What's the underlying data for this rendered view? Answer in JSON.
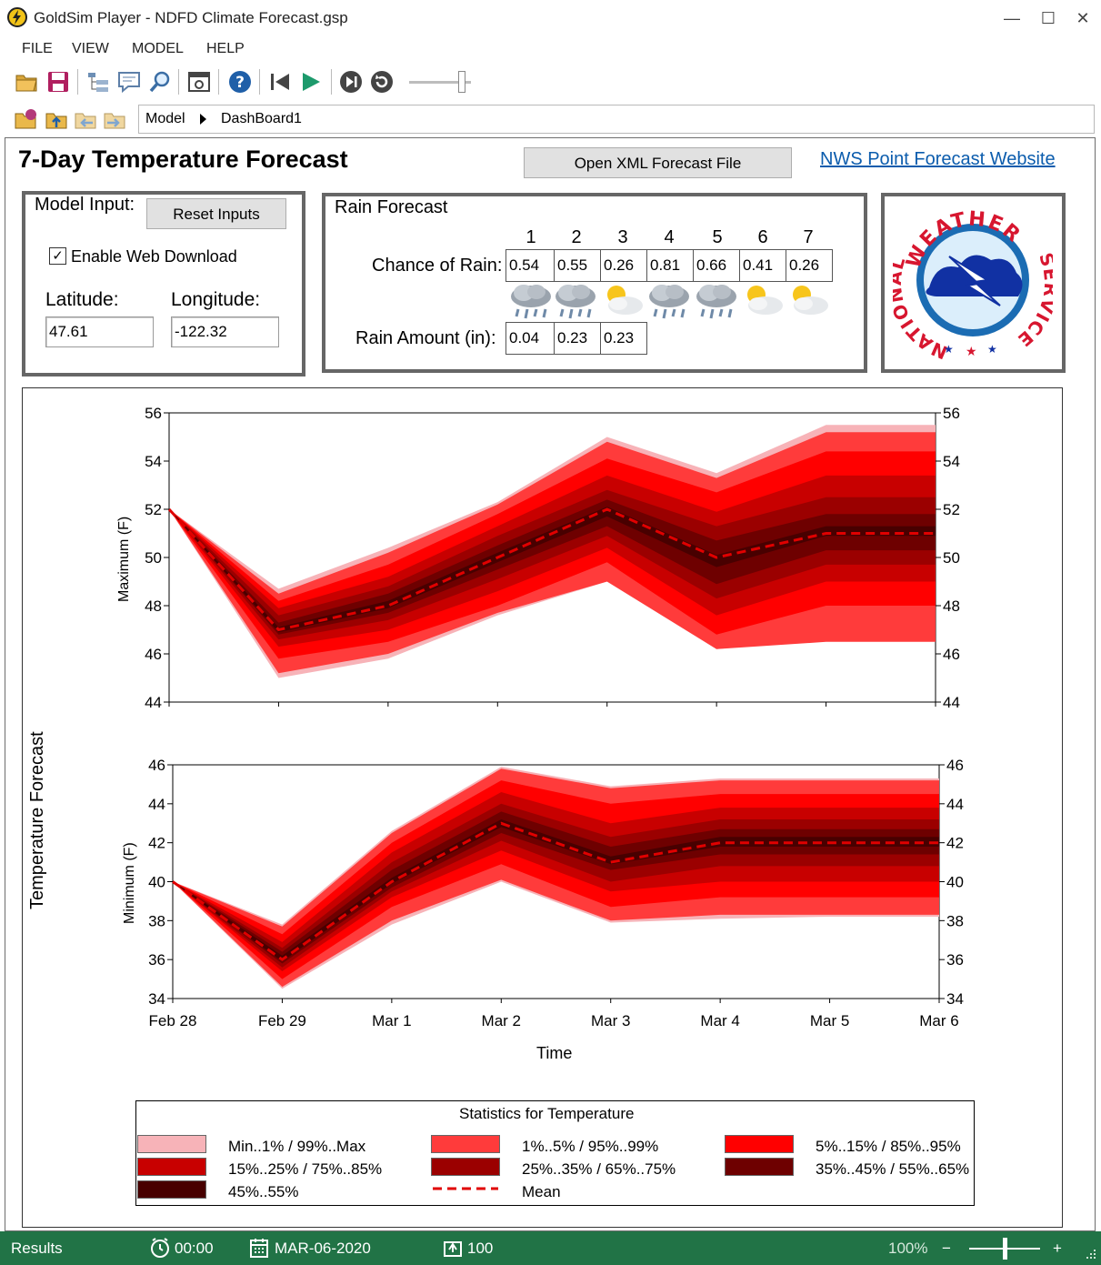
{
  "window": {
    "title": "GoldSim Player - NDFD Climate Forecast.gsp",
    "minimize": "—",
    "maximize": "☐",
    "close": "✕"
  },
  "menu": [
    "FILE",
    "VIEW",
    "MODEL",
    "HELP"
  ],
  "toolbar": {
    "icons": [
      "open-folder-icon",
      "save-icon",
      "browser-tree-icon",
      "comment-icon",
      "search-icon",
      "dashboard-icon",
      "help-icon",
      "step-back-icon",
      "run-icon",
      "step-forward-icon",
      "reset-icon",
      "time-slider"
    ]
  },
  "breadcrumb": {
    "root": "Model",
    "current": "DashBoard1"
  },
  "dashboard": {
    "title": "7-Day Temperature Forecast",
    "open_xml_label": "Open XML Forecast File",
    "nws_link": "NWS Point Forecast Website"
  },
  "model_input": {
    "title": "Model Input:",
    "reset_label": "Reset Inputs",
    "web_download_label": "Enable Web Download",
    "web_download_checked": "✓",
    "lat_label": "Latitude:",
    "lon_label": "Longitude:",
    "latitude": "47.61",
    "longitude": "-122.32"
  },
  "rain": {
    "title": "Rain Forecast",
    "days": [
      "1",
      "2",
      "3",
      "4",
      "5",
      "6",
      "7"
    ],
    "chance_label": "Chance of Rain:",
    "chance": [
      "0.54",
      "0.55",
      "0.26",
      "0.81",
      "0.66",
      "0.41",
      "0.26"
    ],
    "icons": [
      "rain-cloud-icon",
      "rain-cloud-icon",
      "partly-sunny-icon",
      "rain-cloud-icon",
      "rain-cloud-icon",
      "partly-sunny-icon",
      "partly-sunny-icon"
    ],
    "amount_label": "Rain Amount (in):",
    "amount": [
      "0.04",
      "0.23",
      "0.23"
    ]
  },
  "nws_logo": {
    "top_text": "WEATHER",
    "left_text": "NATIONAL",
    "right_text": "SERVICE"
  },
  "chart": {
    "y_title": "Temperature Forecast",
    "x_title": "Time",
    "dates": [
      "Feb 28",
      "Feb 29",
      "Mar 1",
      "Mar 2",
      "Mar 3",
      "Mar 4",
      "Mar 5",
      "Mar 6"
    ],
    "max_label": "Maximum (F)",
    "min_label": "Minimum (F)",
    "max_ticks": [
      "56",
      "54",
      "52",
      "50",
      "48",
      "46",
      "44"
    ],
    "min_ticks": [
      "46",
      "44",
      "42",
      "40",
      "38",
      "36",
      "34"
    ],
    "colors": [
      "#f7b3b8",
      "#ff3b3b",
      "#ff0000",
      "#c80000",
      "#9b0000",
      "#6e0000",
      "#480000"
    ]
  },
  "chart_data": [
    {
      "type": "area",
      "ylabel": "Maximum (F)",
      "xlabel": "Time",
      "x": [
        "Feb 28",
        "Feb 29",
        "Mar 1",
        "Mar 2",
        "Mar 3",
        "Mar 4",
        "Mar 5",
        "Mar 6"
      ],
      "ylim": [
        44,
        56
      ],
      "series": [
        {
          "name": "Mean",
          "values": [
            52,
            47,
            48,
            50,
            52,
            50,
            51,
            51
          ]
        },
        {
          "name": "Min..1% / 99%..Max",
          "low": [
            52,
            45,
            45.8,
            47.6,
            49.0,
            46.2,
            46.6,
            46.6
          ],
          "high": [
            52,
            48.7,
            50.4,
            52.3,
            55.0,
            53.5,
            55.5,
            55.5
          ]
        },
        {
          "name": "1%..5% / 95%..99%",
          "low": [
            52,
            45.2,
            46.0,
            47.7,
            49.0,
            46.2,
            46.5,
            46.5
          ],
          "high": [
            52,
            48.5,
            50.2,
            52.2,
            54.8,
            53.3,
            55.2,
            55.2
          ]
        },
        {
          "name": "5%..15% / 85%..95%",
          "low": [
            52,
            45.8,
            46.5,
            48.0,
            49.8,
            46.8,
            48.0,
            48.0
          ],
          "high": [
            52,
            48.2,
            49.7,
            51.8,
            54.1,
            52.7,
            54.4,
            54.4
          ]
        },
        {
          "name": "15%..25% / 75%..85%",
          "low": [
            52,
            46.3,
            47.0,
            48.6,
            50.4,
            47.6,
            49.0,
            49.0
          ],
          "high": [
            52,
            47.9,
            49.2,
            51.3,
            53.4,
            51.9,
            53.4,
            53.4
          ]
        },
        {
          "name": "25%..35% / 65%..75%",
          "low": [
            52,
            46.6,
            47.4,
            49.1,
            50.9,
            48.3,
            49.7,
            49.7
          ],
          "high": [
            52,
            47.6,
            48.8,
            50.9,
            52.8,
            51.3,
            52.5,
            52.5
          ]
        },
        {
          "name": "35%..45% / 55%..65%",
          "low": [
            52,
            46.8,
            47.7,
            49.5,
            51.3,
            48.9,
            50.3,
            50.3
          ],
          "high": [
            52,
            47.3,
            48.5,
            50.5,
            52.4,
            50.7,
            51.8,
            51.8
          ]
        },
        {
          "name": "45%..55%",
          "low": [
            52,
            46.9,
            47.9,
            49.8,
            51.7,
            49.6,
            50.9,
            50.9
          ],
          "high": [
            52,
            47.1,
            48.2,
            50.2,
            52.1,
            50.1,
            51.3,
            51.3
          ]
        }
      ]
    },
    {
      "type": "area",
      "ylabel": "Minimum (F)",
      "xlabel": "Time",
      "x": [
        "Feb 28",
        "Feb 29",
        "Mar 1",
        "Mar 2",
        "Mar 3",
        "Mar 4",
        "Mar 5",
        "Mar 6"
      ],
      "ylim": [
        34,
        46
      ],
      "series": [
        {
          "name": "Mean",
          "values": [
            40,
            36,
            40,
            43,
            41,
            42,
            42,
            42
          ]
        },
        {
          "name": "Min..1% / 99%..Max",
          "low": [
            40,
            34.5,
            37.8,
            40.0,
            37.9,
            38.1,
            38.2,
            38.2
          ],
          "high": [
            40,
            37.8,
            42.6,
            45.9,
            44.9,
            45.3,
            45.3,
            45.3
          ]
        },
        {
          "name": "1%..5% / 95%..99%",
          "low": [
            40,
            34.6,
            38.0,
            40.1,
            38.0,
            38.3,
            38.3,
            38.3
          ],
          "high": [
            40,
            37.7,
            42.5,
            45.8,
            44.8,
            45.2,
            45.2,
            45.2
          ]
        },
        {
          "name": "5%..15% / 85%..95%",
          "low": [
            40,
            35.0,
            38.7,
            40.9,
            38.7,
            39.2,
            39.2,
            39.2
          ],
          "high": [
            40,
            37.3,
            42.0,
            45.2,
            44.0,
            44.5,
            44.5,
            44.5
          ]
        },
        {
          "name": "15%..25% / 75%..85%",
          "low": [
            40,
            35.4,
            39.2,
            41.6,
            39.5,
            40.0,
            40.0,
            40.0
          ],
          "high": [
            40,
            36.9,
            41.5,
            44.6,
            43.0,
            43.8,
            43.8,
            43.8
          ]
        },
        {
          "name": "25%..35% / 65%..75%",
          "low": [
            40,
            35.6,
            39.5,
            42.1,
            40.0,
            40.8,
            40.8,
            40.8
          ],
          "high": [
            40,
            36.6,
            41.0,
            44.0,
            42.3,
            43.2,
            43.2,
            43.2
          ]
        },
        {
          "name": "35%..45% / 55%..65%",
          "low": [
            40,
            35.8,
            39.7,
            42.5,
            40.6,
            41.4,
            41.4,
            41.4
          ],
          "high": [
            40,
            36.4,
            40.6,
            43.6,
            41.8,
            42.7,
            42.7,
            42.7
          ]
        },
        {
          "name": "45%..55%",
          "low": [
            40,
            35.9,
            39.9,
            42.8,
            40.9,
            41.8,
            41.8,
            41.8
          ],
          "high": [
            40,
            36.2,
            40.2,
            43.2,
            41.3,
            42.3,
            42.3,
            42.3
          ]
        }
      ]
    }
  ],
  "legend": {
    "title": "Statistics for Temperature",
    "items": [
      {
        "label": "Min..1% / 99%..Max",
        "color": "#f7b3b8"
      },
      {
        "label": "1%..5% / 95%..99%",
        "color": "#ff3b3b"
      },
      {
        "label": "5%..15% / 85%..95%",
        "color": "#ff0000"
      },
      {
        "label": "15%..25% / 75%..85%",
        "color": "#c80000"
      },
      {
        "label": "25%..35% / 65%..75%",
        "color": "#9b0000"
      },
      {
        "label": "35%..45% / 55%..65%",
        "color": "#6e0000"
      },
      {
        "label": "45%..55%",
        "color": "#480000"
      },
      {
        "label": "Mean",
        "color": "#e00000"
      }
    ]
  },
  "status": {
    "results": "Results",
    "time": "00:00",
    "date": "MAR-06-2020",
    "realizations": "100",
    "zoom": "100%",
    "zoom_minus": "−",
    "zoom_plus": "+",
    "zoom_level": 0.5
  },
  "theme": {
    "status_green": "#217346",
    "link": "#0b5cad"
  }
}
